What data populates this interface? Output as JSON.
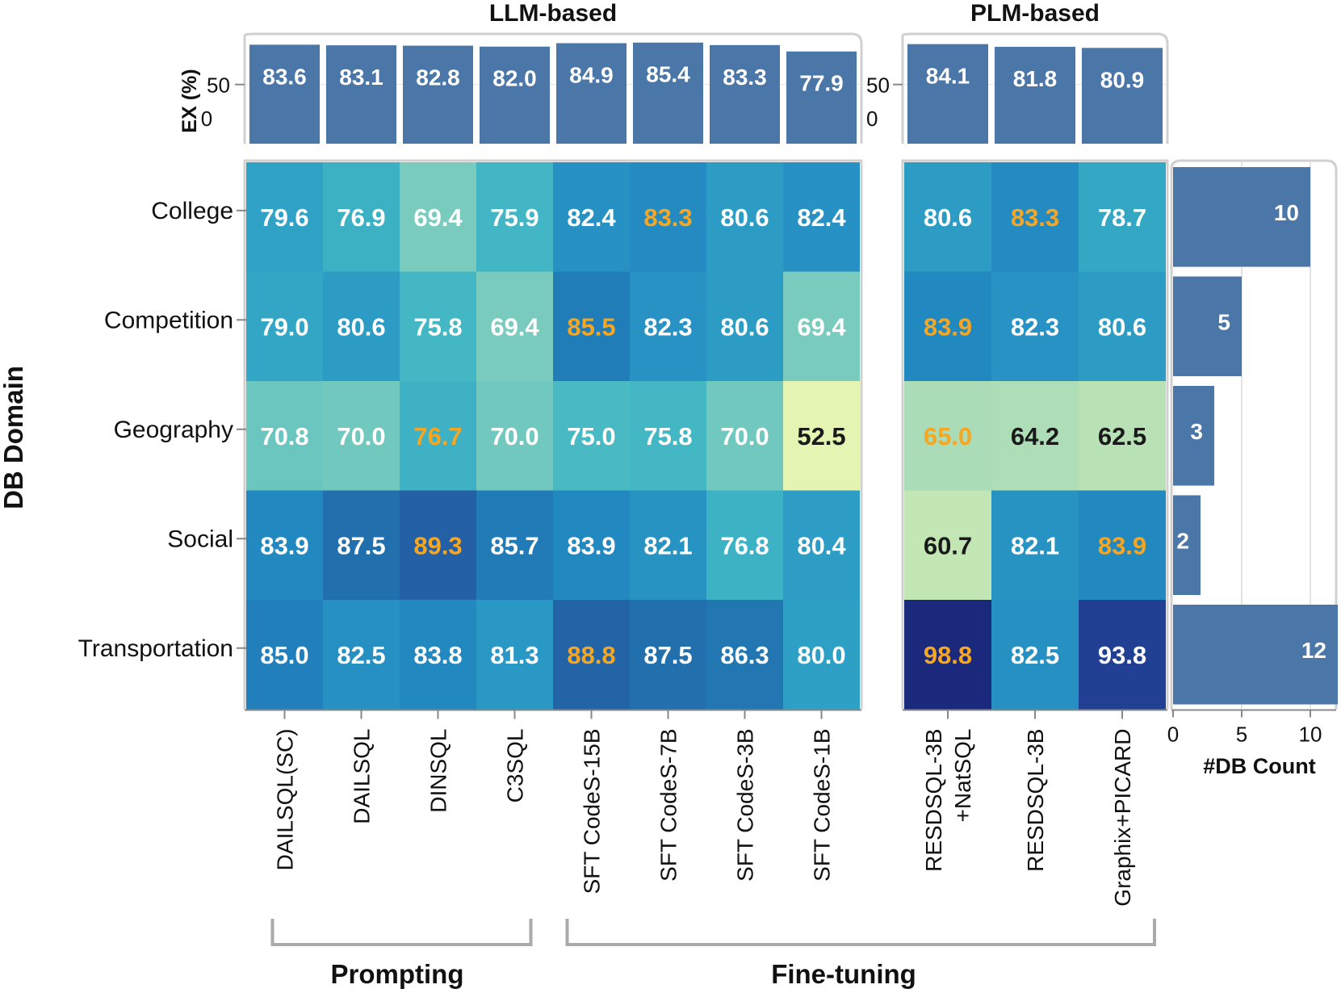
{
  "chart_data": [
    {
      "type": "bar",
      "group_title": "LLM-based",
      "ylabel": "EX (%)",
      "yticks": [
        0,
        50
      ],
      "ylim": [
        0,
        100
      ],
      "categories": [
        "DAILSQL(SC)",
        "DAILSQL",
        "DINSQL",
        "C3SQL",
        "SFT CodeS-15B",
        "SFT CodeS-7B",
        "SFT CodeS-3B",
        "SFT CodeS-1B"
      ],
      "values": [
        83.6,
        83.1,
        82.8,
        82.0,
        84.9,
        85.4,
        83.3,
        77.9
      ],
      "color": "#4a76a8"
    },
    {
      "type": "bar",
      "group_title": "PLM-based",
      "yticks": [
        0,
        50
      ],
      "ylim": [
        0,
        100
      ],
      "categories": [
        "RESDSQL-3B +NatSQL",
        "RESDSQL-3B",
        "Graphix+PICARD"
      ],
      "values": [
        84.1,
        81.8,
        80.9
      ],
      "color": "#4a76a8"
    },
    {
      "type": "heatmap",
      "ylabel": "DB Domain",
      "rows": [
        "College",
        "Competition",
        "Geography",
        "Social",
        "Transportation"
      ],
      "columns": [
        "DAILSQL(SC)",
        "DAILSQL",
        "DINSQL",
        "C3SQL",
        "SFT CodeS-15B",
        "SFT CodeS-7B",
        "SFT CodeS-3B",
        "SFT CodeS-1B"
      ],
      "values": [
        [
          79.6,
          76.9,
          69.4,
          75.9,
          82.4,
          83.3,
          80.6,
          82.4
        ],
        [
          79.0,
          80.6,
          75.8,
          69.4,
          85.5,
          82.3,
          80.6,
          69.4
        ],
        [
          70.8,
          70.0,
          76.7,
          70.0,
          75.0,
          75.8,
          70.0,
          52.5
        ],
        [
          83.9,
          87.5,
          89.3,
          85.7,
          83.9,
          82.1,
          76.8,
          80.4
        ],
        [
          85.0,
          82.5,
          83.8,
          81.3,
          88.8,
          87.5,
          86.3,
          80.0
        ]
      ],
      "highlight_color": "#f5a623"
    },
    {
      "type": "heatmap",
      "rows": [
        "College",
        "Competition",
        "Geography",
        "Social",
        "Transportation"
      ],
      "columns": [
        "RESDSQL-3B +NatSQL",
        "RESDSQL-3B",
        "Graphix+PICARD"
      ],
      "values": [
        [
          80.6,
          83.3,
          78.7
        ],
        [
          83.9,
          82.3,
          80.6
        ],
        [
          65.0,
          64.2,
          62.5
        ],
        [
          60.7,
          82.1,
          83.9
        ],
        [
          98.8,
          82.5,
          93.8
        ]
      ],
      "highlight_color": "#f5a623"
    },
    {
      "type": "bar",
      "orientation": "horizontal",
      "xlabel": "#DB Count",
      "categories": [
        "College",
        "Competition",
        "Geography",
        "Social",
        "Transportation"
      ],
      "values": [
        10,
        5,
        3,
        2,
        12
      ],
      "xticks": [
        0,
        5,
        10
      ],
      "xlim": [
        0,
        12
      ],
      "color": "#4a76a8"
    }
  ],
  "groups": {
    "prompting": "Prompting",
    "finetuning": "Fine-tuning"
  }
}
